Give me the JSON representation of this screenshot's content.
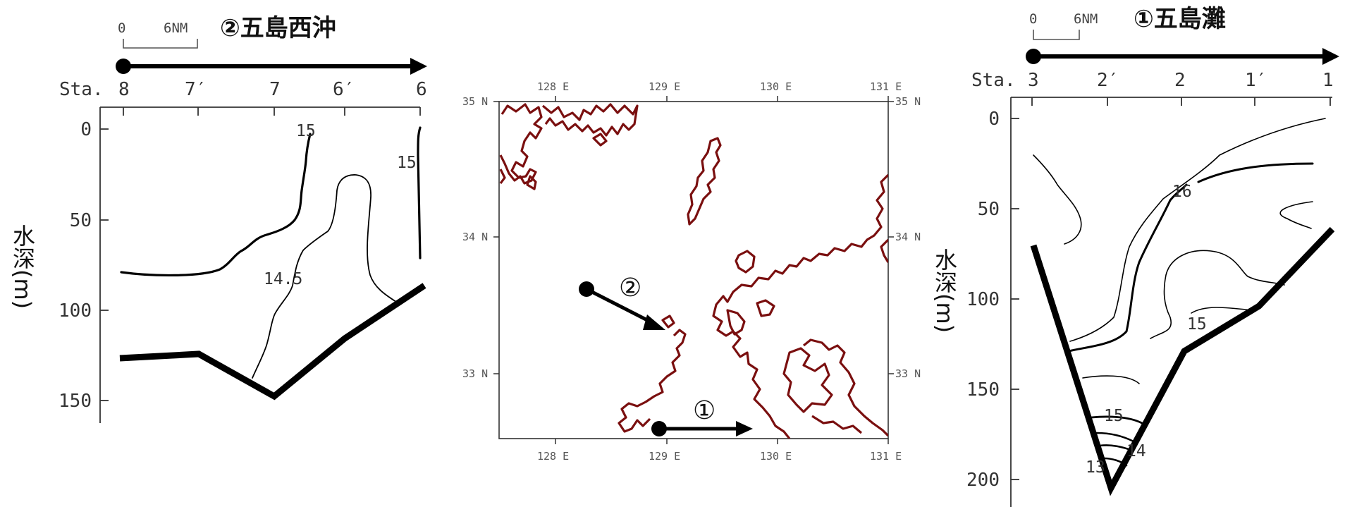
{
  "left_section": {
    "title": "②五島西沖",
    "scale": {
      "zero": "0",
      "distance": "6NM"
    },
    "station_prefix": "Sta.",
    "stations": [
      "8",
      "7′",
      "7",
      "6′",
      "6"
    ],
    "y_label": "水深(m)",
    "y_ticks": [
      "0",
      "50",
      "100",
      "150"
    ],
    "contour_labels": [
      "15",
      "15",
      "14.5"
    ]
  },
  "right_section": {
    "title": "①五島灘",
    "scale": {
      "zero": "0",
      "distance": "6NM"
    },
    "station_prefix": "Sta.",
    "stations": [
      "3",
      "2′",
      "2",
      "1′",
      "1"
    ],
    "y_label": "水深(m)",
    "y_ticks": [
      "0",
      "50",
      "100",
      "150",
      "200"
    ],
    "contour_labels": [
      "16",
      "15",
      "15",
      "14",
      "13"
    ]
  },
  "map": {
    "lon_labels": [
      "128 E",
      "129 E",
      "130 E",
      "131 E"
    ],
    "lat_labels": [
      "35 N",
      "34 N",
      "33 N"
    ],
    "transect_markers": [
      "②",
      "①"
    ]
  },
  "colors": {
    "coastline": "#7a0f0f",
    "lines": "#000000",
    "text": "#333333"
  }
}
